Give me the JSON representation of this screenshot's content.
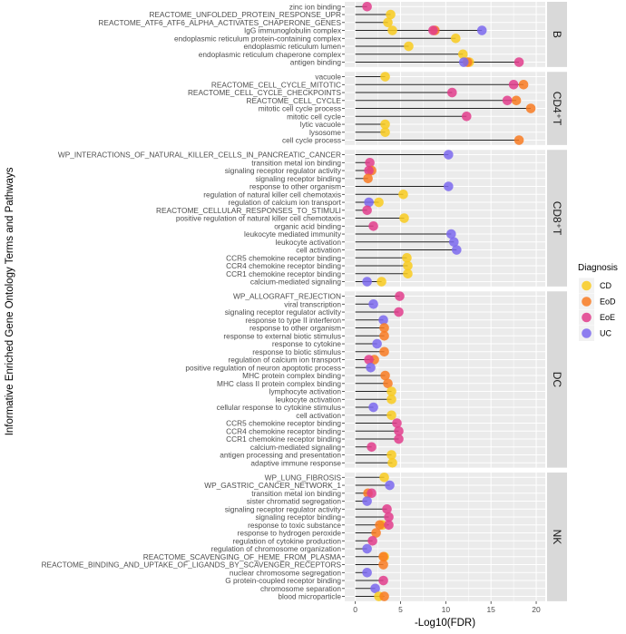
{
  "chart_data": {
    "type": "lollipop",
    "xlabel": "-Log10(FDR)",
    "ylabel": "Informative Enriched Gene Ontology Terms and Pathways",
    "xlim": [
      -1.17,
      21
    ],
    "xticks": [
      0,
      5,
      10,
      15,
      20
    ],
    "grid": true,
    "legend": {
      "title": "Diagnosis",
      "position": "right",
      "entries": [
        "CD",
        "EoD",
        "EoE",
        "UC"
      ]
    },
    "colors": {
      "CD": "#F9CB1F",
      "EoD": "#F97B22",
      "EoE": "#E23D8C",
      "UC": "#7B68EE"
    },
    "facets": [
      {
        "name": "B",
        "terms": [
          {
            "term": "zinc ion binding",
            "values": {
              "EoE": 1.3
            }
          },
          {
            "term": "REACTOME_UNFOLDED_PROTEIN_RESPONSE_UPR",
            "values": {
              "CD": 3.9
            }
          },
          {
            "term": "REACTOME_ATF6_ATF6_ALPHA_ACTIVATES_CHAPERONE_GENES",
            "values": {
              "CD": 3.6
            }
          },
          {
            "term": "IgG immunoglobulin complex",
            "values": {
              "CD": 4.1,
              "EoD": 8.8,
              "EoE": 8.6,
              "UC": 14.0
            }
          },
          {
            "term": "endoplasmic reticulum protein-containing complex",
            "values": {
              "CD": 11.1
            }
          },
          {
            "term": "endoplasmic reticulum lumen",
            "values": {
              "CD": 5.9
            }
          },
          {
            "term": "endoplasmic reticulum chaperone complex",
            "values": {
              "CD": 11.9
            }
          },
          {
            "term": "antigen binding",
            "values": {
              "UC": 12.0,
              "EoD": 12.4,
              "CD": 12.6,
              "EoE": 18.1
            }
          }
        ]
      },
      {
        "name": "CD4⁺T",
        "terms": [
          {
            "term": "vacuole",
            "values": {
              "CD": 3.3
            }
          },
          {
            "term": "REACTOME_CELL_CYCLE_MITOTIC",
            "values": {
              "EoE": 17.5,
              "EoD": 18.6
            }
          },
          {
            "term": "REACTOME_CELL_CYCLE_CHECKPOINTS",
            "values": {
              "EoE": 10.7
            }
          },
          {
            "term": "REACTOME_CELL_CYCLE",
            "values": {
              "EoE": 16.8,
              "EoD": 17.8
            }
          },
          {
            "term": "mitotic cell cycle process",
            "values": {
              "EoD": 19.4
            }
          },
          {
            "term": "mitotic cell cycle",
            "values": {
              "EoE": 12.3
            }
          },
          {
            "term": "lytic vacuole",
            "values": {
              "CD": 3.3
            }
          },
          {
            "term": "lysosome",
            "values": {
              "CD": 3.3
            }
          },
          {
            "term": "cell cycle process",
            "values": {
              "EoD": 18.1
            }
          }
        ]
      },
      {
        "name": "CD8⁺T",
        "terms": [
          {
            "term": "WP_INTERACTIONS_OF_NATURAL_KILLER_CELLS_IN_PANCREATIC_CANCER",
            "values": {
              "UC": 10.3
            }
          },
          {
            "term": "transition metal ion binding",
            "values": {
              "EoE": 1.6
            }
          },
          {
            "term": "signaling receptor regulator activity",
            "values": {
              "EoD": 1.8,
              "EoE": 1.5
            }
          },
          {
            "term": "signaling receptor binding",
            "values": {
              "EoD": 1.4
            }
          },
          {
            "term": "response to other organism",
            "values": {
              "UC": 10.3
            }
          },
          {
            "term": "regulation of natural killer cell chemotaxis",
            "values": {
              "CD": 5.3
            }
          },
          {
            "term": "regulation of calcium ion transport",
            "values": {
              "UC": 1.5,
              "CD": 2.6
            }
          },
          {
            "term": "REACTOME_CELLULAR_RESPONSES_TO_STIMULI",
            "values": {
              "EoE": 1.3
            }
          },
          {
            "term": "positive regulation of natural killer cell chemotaxis",
            "values": {
              "CD": 5.4
            }
          },
          {
            "term": "organic acid binding",
            "values": {
              "EoE": 2.0
            }
          },
          {
            "term": "leukocyte mediated immunity",
            "values": {
              "UC": 10.6
            }
          },
          {
            "term": "leukocyte activation",
            "values": {
              "UC": 10.9
            }
          },
          {
            "term": "cell activation",
            "values": {
              "UC": 11.2
            }
          },
          {
            "term": "CCR5 chemokine receptor binding",
            "values": {
              "CD": 5.7
            }
          },
          {
            "term": "CCR4 chemokine receptor binding",
            "values": {
              "CD": 5.8
            }
          },
          {
            "term": "CCR1 chemokine receptor binding",
            "values": {
              "CD": 5.8
            }
          },
          {
            "term": "calcium-mediated signaling",
            "values": {
              "UC": 1.3,
              "CD": 2.9
            }
          }
        ]
      },
      {
        "name": "DC",
        "terms": [
          {
            "term": "WP_ALLOGRAFT_REJECTION",
            "values": {
              "EoE": 4.9
            }
          },
          {
            "term": "viral transcription",
            "values": {
              "UC": 2.0
            }
          },
          {
            "term": "signaling receptor regulator activity",
            "values": {
              "EoE": 4.8
            }
          },
          {
            "term": "response to type II interferon",
            "values": {
              "UC": 3.1
            }
          },
          {
            "term": "response to other organism",
            "values": {
              "EoD": 3.2
            }
          },
          {
            "term": "response to external biotic stimulus",
            "values": {
              "EoD": 3.2
            }
          },
          {
            "term": "response to cytokine",
            "values": {
              "UC": 2.4
            }
          },
          {
            "term": "response to biotic stimulus",
            "values": {
              "EoD": 3.2
            }
          },
          {
            "term": "regulation of calcium ion transport",
            "values": {
              "EoD": 2.1,
              "EoE": 1.5
            }
          },
          {
            "term": "positive regulation of neuron apoptotic process",
            "values": {
              "UC": 1.7
            }
          },
          {
            "term": "MHC protein complex binding",
            "values": {
              "EoD": 3.3
            }
          },
          {
            "term": "MHC class II protein complex binding",
            "values": {
              "EoD": 3.6
            }
          },
          {
            "term": "lymphocyte activation",
            "values": {
              "CD": 4.0
            }
          },
          {
            "term": "leukocyte activation",
            "values": {
              "CD": 4.0
            }
          },
          {
            "term": "cellular response to cytokine stimulus",
            "values": {
              "UC": 2.0
            }
          },
          {
            "term": "cell activation",
            "values": {
              "CD": 4.0
            }
          },
          {
            "term": "CCR5 chemokine receptor binding",
            "values": {
              "EoE": 4.6
            }
          },
          {
            "term": "CCR4 chemokine receptor binding",
            "values": {
              "EoE": 4.8
            }
          },
          {
            "term": "CCR1 chemokine receptor binding",
            "values": {
              "EoE": 4.8
            }
          },
          {
            "term": "calcium-mediated signaling",
            "values": {
              "EoE": 1.8
            }
          },
          {
            "term": "antigen processing and presentation",
            "values": {
              "CD": 4.0
            }
          },
          {
            "term": "adaptive immune response",
            "values": {
              "CD": 4.1
            }
          }
        ]
      },
      {
        "name": "NK",
        "terms": [
          {
            "term": "WP_LUNG_FIBROSIS",
            "values": {
              "CD": 3.2
            }
          },
          {
            "term": "WP_GASTRIC_CANCER_NETWORK_1",
            "values": {
              "UC": 3.8
            }
          },
          {
            "term": "transition metal ion binding",
            "values": {
              "EoD": 1.4,
              "EoE": 1.8
            }
          },
          {
            "term": "sister chromatid segregation",
            "values": {
              "UC": 1.3
            }
          },
          {
            "term": "signaling receptor regulator activity",
            "values": {
              "EoE": 3.5
            }
          },
          {
            "term": "signaling receptor binding",
            "values": {
              "EoE": 3.7
            }
          },
          {
            "term": "response to toxic substance",
            "values": {
              "CD": 3.0,
              "EoD": 2.7,
              "EoE": 3.7
            }
          },
          {
            "term": "response to hydrogen peroxide",
            "values": {
              "EoD": 2.3
            }
          },
          {
            "term": "regulation of cytokine production",
            "values": {
              "EoE": 1.9
            }
          },
          {
            "term": "regulation of chromosome organization",
            "values": {
              "UC": 1.3
            }
          },
          {
            "term": "REACTOME_SCAVENGING_OF_HEME_FROM_PLASMA",
            "values": {
              "CD": 3.2,
              "EoD": 3.1
            }
          },
          {
            "term": "REACTOME_BINDING_AND_UPTAKE_OF_LIGANDS_BY_SCAVENGER_RECEPTORS",
            "values": {
              "EoD": 3.1
            }
          },
          {
            "term": "nuclear chromosome segregation",
            "values": {
              "UC": 1.3
            }
          },
          {
            "term": "G protein-coupled receptor binding",
            "values": {
              "EoE": 3.1
            }
          },
          {
            "term": "chromosome separation",
            "values": {
              "UC": 2.2
            }
          },
          {
            "term": "blood microparticle",
            "values": {
              "CD": 2.6,
              "EoD": 3.2
            }
          }
        ]
      }
    ]
  }
}
